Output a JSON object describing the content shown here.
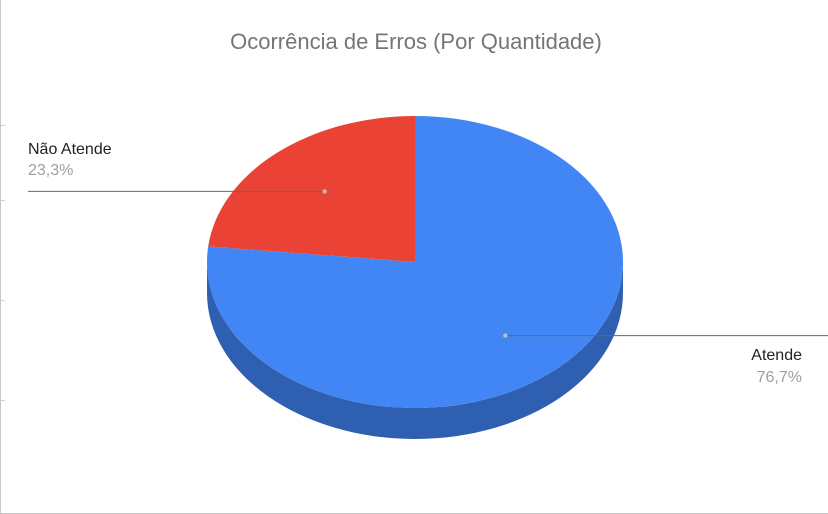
{
  "chart_data": {
    "type": "pie",
    "style": "3d",
    "title": "Ocorrência de Erros (Por Quantidade)",
    "slices": [
      {
        "name": "Atende",
        "value": 76.7,
        "label": "76,7%",
        "color": "#4285f4",
        "side_color": "#2f5fb0"
      },
      {
        "name": "Não Atende",
        "value": 23.3,
        "label": "23,3%",
        "color": "#ea4335",
        "side_color": "#b3362b"
      }
    ],
    "legend": "labels"
  }
}
